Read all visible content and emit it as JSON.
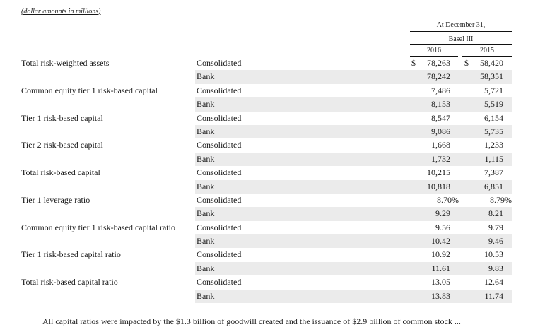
{
  "heading_fragment": "",
  "subtitle": "(dollar amounts in millions)",
  "header": {
    "period": "At December 31,",
    "framework": "Basel III",
    "years": [
      "2016",
      "2015"
    ]
  },
  "rows": [
    {
      "metric": "Total risk-weighted assets",
      "entity": "Consolidated",
      "cur16": "$",
      "v16": "78,263",
      "cur15": "$",
      "v15": "58,420"
    },
    {
      "metric": "",
      "entity": "Bank",
      "v16": "78,242",
      "v15": "58,351"
    },
    {
      "metric": "Common equity tier 1 risk-based capital",
      "entity": "Consolidated",
      "v16": "7,486",
      "v15": "5,721"
    },
    {
      "metric": "",
      "entity": "Bank",
      "v16": "8,153",
      "v15": "5,519"
    },
    {
      "metric": "Tier 1 risk-based capital",
      "entity": "Consolidated",
      "v16": "8,547",
      "v15": "6,154"
    },
    {
      "metric": "",
      "entity": "Bank",
      "v16": "9,086",
      "v15": "5,735"
    },
    {
      "metric": "Tier 2 risk-based capital",
      "entity": "Consolidated",
      "v16": "1,668",
      "v15": "1,233"
    },
    {
      "metric": "",
      "entity": "Bank",
      "v16": "1,732",
      "v15": "1,115"
    },
    {
      "metric": "Total risk-based capital",
      "entity": "Consolidated",
      "v16": "10,215",
      "v15": "7,387"
    },
    {
      "metric": "",
      "entity": "Bank",
      "v16": "10,818",
      "v15": "6,851"
    },
    {
      "metric": "Tier 1 leverage ratio",
      "entity": "Consolidated",
      "v16": "8.70%",
      "v15": "8.79%",
      "pct": true
    },
    {
      "metric": "",
      "entity": "Bank",
      "v16": "9.29",
      "v15": "8.21"
    },
    {
      "metric": "Common equity tier 1 risk-based capital ratio",
      "entity": "Consolidated",
      "v16": "9.56",
      "v15": "9.79"
    },
    {
      "metric": "",
      "entity": "Bank",
      "v16": "10.42",
      "v15": "9.46"
    },
    {
      "metric": "Tier 1 risk-based capital ratio",
      "entity": "Consolidated",
      "v16": "10.92",
      "v15": "10.53"
    },
    {
      "metric": "",
      "entity": "Bank",
      "v16": "11.61",
      "v15": "9.83"
    },
    {
      "metric": "Total risk-based capital ratio",
      "entity": "Consolidated",
      "v16": "13.05",
      "v15": "12.64"
    },
    {
      "metric": "",
      "entity": "Bank",
      "v16": "13.83",
      "v15": "11.74"
    }
  ],
  "footer_fragment": "All capital ratios were impacted by the $1.3 billion of goodwill created and the issuance of $2.9 billion of common stock ..."
}
